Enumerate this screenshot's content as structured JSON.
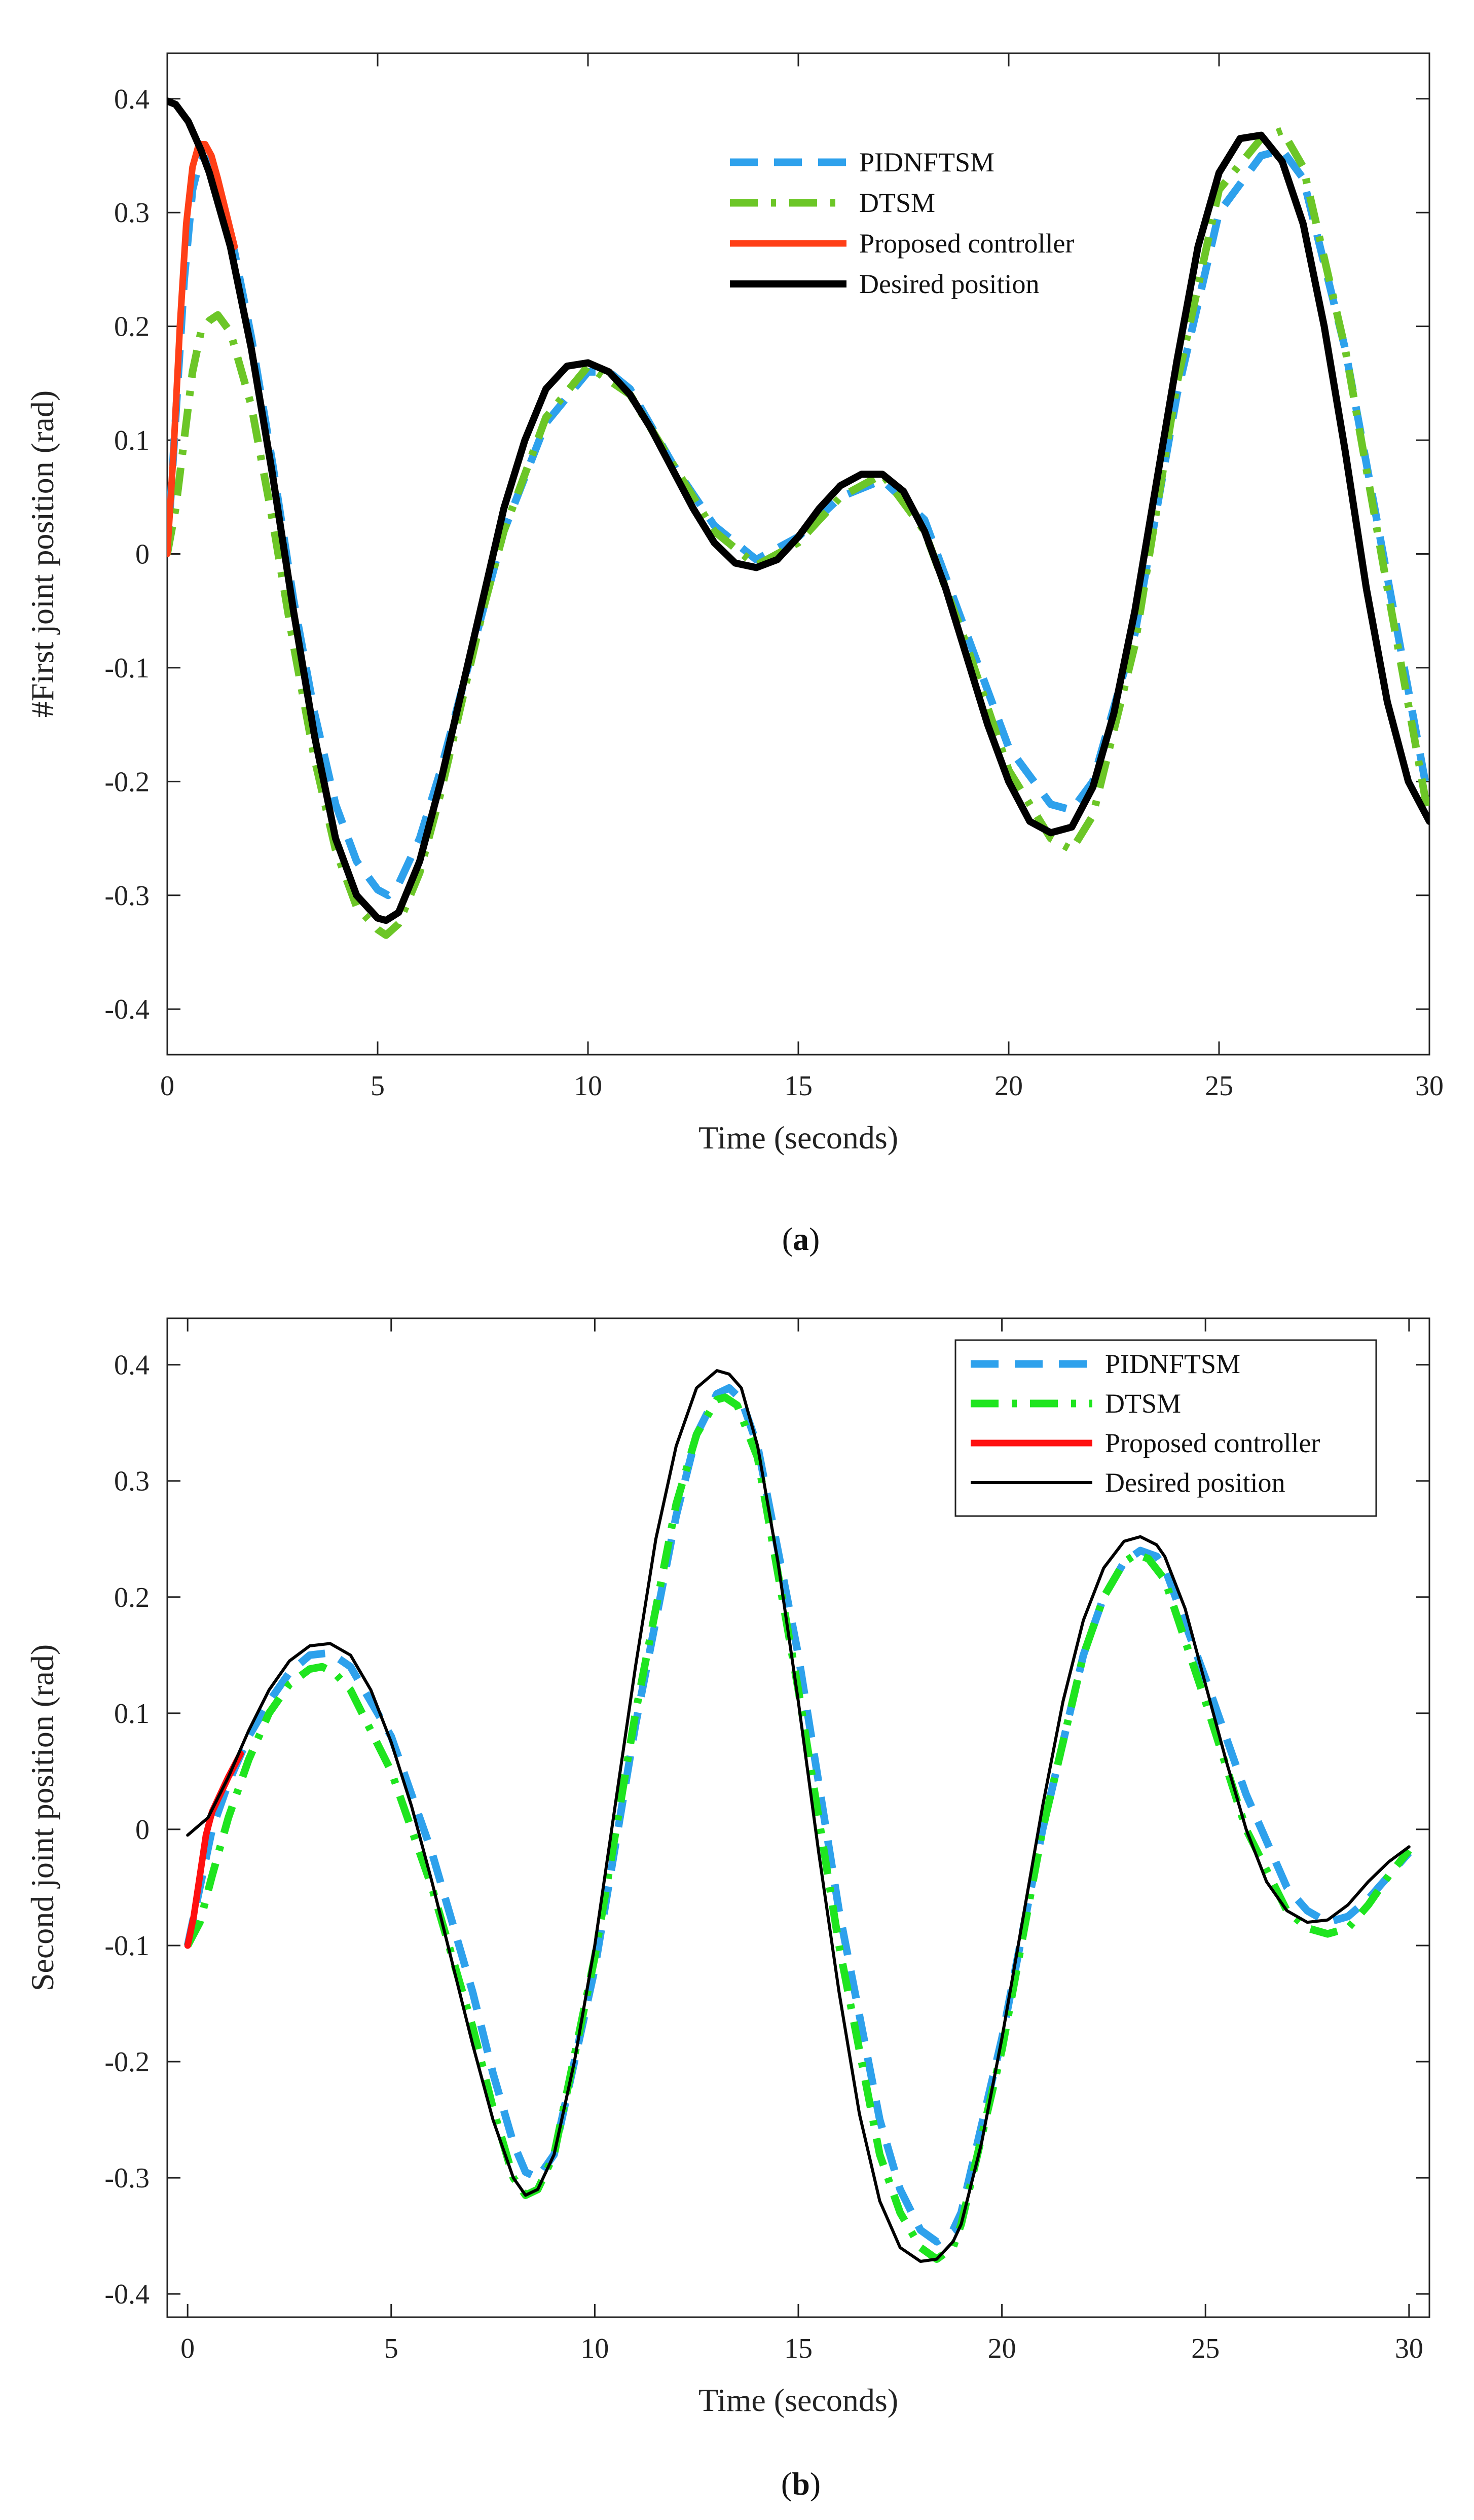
{
  "colors": {
    "PIDNFTSM": "#2ea1ec",
    "DTSM_a": "#6cc627",
    "DTSM_b": "#1fe51f",
    "proposed_a": "#ff3f17",
    "proposed_b": "#ff1010",
    "desired": "#000000",
    "axes": "#222222"
  },
  "chart_data": [
    {
      "type": "line",
      "panel": "(a)",
      "caption_letter": "a",
      "xlabel": "Time (seconds)",
      "ylabel": "#First joint position (rad)",
      "xlim": [
        0,
        30
      ],
      "ylim": [
        -0.44,
        0.44
      ],
      "xticks": [
        0,
        5,
        10,
        15,
        20,
        25,
        30
      ],
      "yticks": [
        -0.4,
        -0.3,
        -0.2,
        -0.1,
        0,
        0.1,
        0.2,
        0.3,
        0.4
      ],
      "legend_position": "top-center",
      "legend_box": false,
      "series": [
        {
          "name": "PIDNFTSM",
          "style": "dashed",
          "x": [
            0,
            0.2,
            0.4,
            0.6,
            0.8,
            1.0,
            1.3,
            1.6,
            2.0,
            2.5,
            3.0,
            3.5,
            4.0,
            4.5,
            5.0,
            5.25,
            5.5,
            6.0,
            6.5,
            7.0,
            7.5,
            8.0,
            9.0,
            10.0,
            10.5,
            11.0,
            12.0,
            13.0,
            14.0,
            15.0,
            16.0,
            17.0,
            18.0,
            19.0,
            20.0,
            21.0,
            21.5,
            22.0,
            23.0,
            24.0,
            25.0,
            26.0,
            26.5,
            27.0,
            28.0,
            29.0,
            30.0
          ],
          "y": [
            0,
            0.12,
            0.24,
            0.32,
            0.35,
            0.345,
            0.31,
            0.265,
            0.19,
            0.08,
            -0.04,
            -0.14,
            -0.22,
            -0.27,
            -0.295,
            -0.3,
            -0.29,
            -0.25,
            -0.19,
            -0.12,
            -0.05,
            0.02,
            0.115,
            0.16,
            0.16,
            0.145,
            0.08,
            0.025,
            -0.005,
            0.015,
            0.05,
            0.065,
            0.03,
            -0.07,
            -0.17,
            -0.22,
            -0.225,
            -0.2,
            -0.07,
            0.14,
            0.3,
            0.35,
            0.355,
            0.33,
            0.18,
            -0.02,
            -0.22
          ]
        },
        {
          "name": "DTSM",
          "style": "dashdot",
          "x": [
            0,
            0.2,
            0.4,
            0.6,
            0.8,
            1.0,
            1.2,
            1.5,
            2.0,
            2.5,
            3.0,
            3.5,
            4.0,
            4.5,
            5.0,
            5.2,
            5.5,
            6.0,
            6.5,
            7.0,
            7.5,
            8.0,
            9.0,
            10.0,
            11.0,
            12.0,
            13.0,
            14.0,
            15.0,
            16.0,
            17.0,
            18.0,
            19.0,
            20.0,
            21.0,
            21.5,
            22.0,
            23.0,
            24.0,
            25.0,
            26.0,
            26.5,
            27.0,
            28.0,
            29.0,
            30.0
          ],
          "y": [
            0,
            0.04,
            0.1,
            0.16,
            0.195,
            0.205,
            0.21,
            0.195,
            0.13,
            0.03,
            -0.08,
            -0.18,
            -0.26,
            -0.31,
            -0.33,
            -0.335,
            -0.325,
            -0.28,
            -0.21,
            -0.13,
            -0.05,
            0.02,
            0.12,
            0.165,
            0.14,
            0.08,
            0.02,
            -0.01,
            0.01,
            0.05,
            0.07,
            0.02,
            -0.08,
            -0.19,
            -0.25,
            -0.26,
            -0.23,
            -0.08,
            0.15,
            0.32,
            0.365,
            0.372,
            0.34,
            0.18,
            -0.03,
            -0.235
          ]
        },
        {
          "name": "Proposed controller",
          "style": "solid",
          "x": [
            0,
            0.15,
            0.3,
            0.45,
            0.6,
            0.75,
            0.9,
            1.05,
            1.2,
            1.4,
            1.6
          ],
          "y": [
            0,
            0.09,
            0.2,
            0.29,
            0.34,
            0.36,
            0.36,
            0.35,
            0.33,
            0.3,
            0.27
          ]
        },
        {
          "name": "Desired position",
          "style": "solid",
          "x": [
            0,
            0.2,
            0.5,
            0.8,
            1.0,
            1.5,
            2.0,
            2.5,
            3.0,
            3.5,
            4.0,
            4.5,
            5.0,
            5.2,
            5.5,
            6.0,
            6.5,
            7.0,
            7.5,
            8.0,
            8.5,
            9.0,
            9.5,
            10.0,
            10.5,
            11.0,
            11.5,
            12.0,
            12.5,
            13.0,
            13.5,
            14.0,
            14.5,
            15.0,
            15.5,
            16.0,
            16.5,
            17.0,
            17.5,
            18.0,
            18.5,
            19.0,
            19.5,
            20.0,
            20.5,
            21.0,
            21.5,
            22.0,
            22.5,
            23.0,
            23.5,
            24.0,
            24.5,
            25.0,
            25.5,
            26.0,
            26.5,
            27.0,
            27.5,
            28.0,
            28.5,
            29.0,
            29.5,
            30.0
          ],
          "y": [
            0.398,
            0.395,
            0.38,
            0.355,
            0.335,
            0.27,
            0.18,
            0.07,
            -0.05,
            -0.16,
            -0.25,
            -0.3,
            -0.32,
            -0.322,
            -0.315,
            -0.27,
            -0.2,
            -0.12,
            -0.04,
            0.04,
            0.1,
            0.145,
            0.165,
            0.168,
            0.16,
            0.14,
            0.11,
            0.075,
            0.04,
            0.01,
            -0.008,
            -0.012,
            -0.005,
            0.015,
            0.04,
            0.06,
            0.07,
            0.07,
            0.055,
            0.02,
            -0.03,
            -0.09,
            -0.15,
            -0.2,
            -0.235,
            -0.245,
            -0.24,
            -0.205,
            -0.14,
            -0.05,
            0.06,
            0.17,
            0.27,
            0.335,
            0.365,
            0.368,
            0.345,
            0.29,
            0.2,
            0.09,
            -0.03,
            -0.13,
            -0.2,
            -0.235
          ]
        }
      ]
    },
    {
      "type": "line",
      "panel": "(b)",
      "caption_letter": "b",
      "xlabel": "Time (seconds)",
      "ylabel": "Second joint position (rad)",
      "xlim": [
        -0.5,
        30.5
      ],
      "ylim": [
        -0.42,
        0.44
      ],
      "xticks": [
        0,
        5,
        10,
        15,
        20,
        25,
        30
      ],
      "yticks": [
        -0.4,
        -0.3,
        -0.2,
        -0.1,
        0,
        0.1,
        0.2,
        0.3,
        0.4
      ],
      "legend_position": "top-right",
      "legend_box": true,
      "series": [
        {
          "name": "PIDNFTSM",
          "style": "dashed",
          "x": [
            0,
            0.3,
            0.6,
            1.0,
            1.5,
            2.0,
            2.5,
            3.0,
            3.5,
            4.0,
            5.0,
            6.0,
            7.0,
            7.5,
            8.0,
            8.3,
            8.6,
            9.0,
            10.0,
            11.0,
            12.0,
            12.5,
            13.0,
            13.3,
            13.6,
            14.0,
            15.0,
            16.0,
            17.0,
            17.5,
            18.0,
            18.4,
            18.8,
            19.0,
            20.0,
            21.0,
            22.0,
            22.5,
            23.0,
            23.4,
            23.8,
            24.0,
            25.0,
            26.0,
            27.0,
            27.5,
            28.0,
            28.5,
            29.0,
            29.5,
            30.0
          ],
          "y": [
            -0.1,
            -0.05,
            0.0,
            0.04,
            0.08,
            0.11,
            0.135,
            0.15,
            0.152,
            0.14,
            0.08,
            -0.02,
            -0.14,
            -0.21,
            -0.27,
            -0.295,
            -0.3,
            -0.28,
            -0.12,
            0.09,
            0.27,
            0.34,
            0.375,
            0.38,
            0.37,
            0.33,
            0.15,
            -0.07,
            -0.25,
            -0.31,
            -0.345,
            -0.355,
            -0.345,
            -0.33,
            -0.18,
            0.0,
            0.15,
            0.2,
            0.23,
            0.24,
            0.235,
            0.225,
            0.13,
            0.03,
            -0.05,
            -0.07,
            -0.08,
            -0.075,
            -0.06,
            -0.04,
            -0.02
          ]
        },
        {
          "name": "DTSM",
          "style": "dashdot",
          "x": [
            0,
            0.3,
            0.6,
            1.0,
            1.5,
            2.0,
            2.5,
            3.0,
            3.3,
            3.6,
            4.0,
            5.0,
            6.0,
            7.0,
            7.5,
            8.0,
            8.3,
            8.6,
            9.0,
            10.0,
            11.0,
            12.0,
            12.5,
            13.0,
            13.2,
            13.5,
            14.0,
            15.0,
            16.0,
            17.0,
            17.5,
            18.0,
            18.4,
            18.8,
            19.0,
            20.0,
            21.0,
            22.0,
            22.5,
            23.0,
            23.3,
            23.6,
            24.0,
            25.0,
            26.0,
            27.0,
            27.5,
            28.0,
            28.5,
            29.0,
            29.5,
            30.0
          ],
          "y": [
            -0.1,
            -0.08,
            -0.04,
            0.01,
            0.06,
            0.1,
            0.125,
            0.138,
            0.14,
            0.135,
            0.12,
            0.05,
            -0.05,
            -0.17,
            -0.24,
            -0.3,
            -0.315,
            -0.31,
            -0.28,
            -0.11,
            0.1,
            0.28,
            0.34,
            0.37,
            0.372,
            0.365,
            0.32,
            0.12,
            -0.1,
            -0.28,
            -0.33,
            -0.36,
            -0.37,
            -0.36,
            -0.34,
            -0.19,
            0.0,
            0.15,
            0.2,
            0.23,
            0.237,
            0.233,
            0.215,
            0.11,
            0.0,
            -0.07,
            -0.085,
            -0.09,
            -0.085,
            -0.065,
            -0.04,
            -0.018
          ]
        },
        {
          "name": "Proposed controller",
          "style": "solid",
          "x": [
            0,
            0.15,
            0.3,
            0.45,
            0.6,
            0.8,
            1.0,
            1.3
          ],
          "y": [
            -0.1,
            -0.075,
            -0.04,
            -0.005,
            0.015,
            0.03,
            0.045,
            0.065
          ]
        },
        {
          "name": "Desired position",
          "style": "solid",
          "x": [
            0,
            0.5,
            1.0,
            1.5,
            2.0,
            2.5,
            3.0,
            3.5,
            4.0,
            4.5,
            5.0,
            5.5,
            6.0,
            6.5,
            7.0,
            7.5,
            8.0,
            8.3,
            8.6,
            9.0,
            9.5,
            10.0,
            10.5,
            11.0,
            11.5,
            12.0,
            12.5,
            13.0,
            13.3,
            13.6,
            14.0,
            14.5,
            15.0,
            15.5,
            16.0,
            16.5,
            17.0,
            17.5,
            18.0,
            18.4,
            18.8,
            19.0,
            19.5,
            20.0,
            20.5,
            21.0,
            21.5,
            22.0,
            22.5,
            23.0,
            23.4,
            23.8,
            24.0,
            24.5,
            25.0,
            25.5,
            26.0,
            26.5,
            27.0,
            27.5,
            28.0,
            28.5,
            29.0,
            29.5,
            30.0
          ],
          "y": [
            -0.005,
            0.01,
            0.045,
            0.085,
            0.12,
            0.145,
            0.158,
            0.16,
            0.15,
            0.12,
            0.075,
            0.02,
            -0.045,
            -0.115,
            -0.185,
            -0.25,
            -0.3,
            -0.315,
            -0.31,
            -0.28,
            -0.2,
            -0.1,
            0.02,
            0.14,
            0.25,
            0.33,
            0.38,
            0.395,
            0.392,
            0.38,
            0.33,
            0.23,
            0.11,
            -0.02,
            -0.14,
            -0.245,
            -0.32,
            -0.36,
            -0.372,
            -0.37,
            -0.355,
            -0.34,
            -0.27,
            -0.18,
            -0.08,
            0.02,
            0.11,
            0.18,
            0.225,
            0.248,
            0.252,
            0.245,
            0.235,
            0.19,
            0.125,
            0.06,
            0.0,
            -0.045,
            -0.07,
            -0.08,
            -0.078,
            -0.065,
            -0.045,
            -0.028,
            -0.015
          ]
        }
      ]
    }
  ]
}
